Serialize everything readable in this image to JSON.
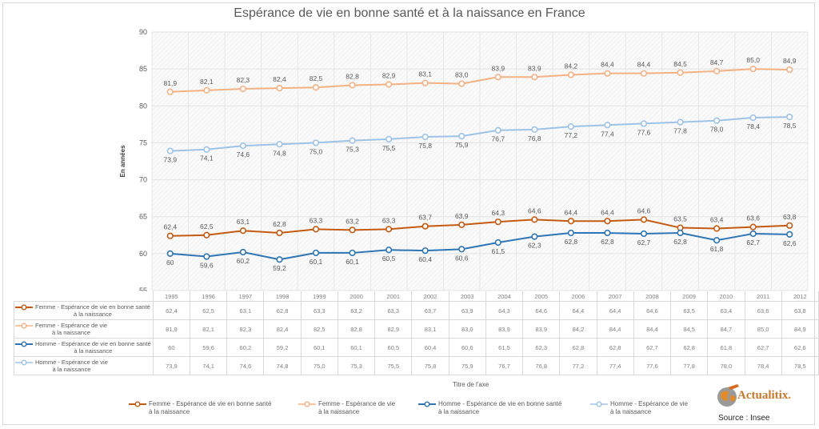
{
  "chart_data": {
    "type": "line",
    "title": "Espérance de vie en bonne santé et à la naissance en France",
    "xlabel": "Titre de l'axe",
    "ylabel": "En années",
    "ylim": [
      55,
      90
    ],
    "yticks": [
      "55",
      "60",
      "65",
      "70",
      "75",
      "80",
      "85",
      "90"
    ],
    "grid": true,
    "legend_position": "bottom",
    "categories": [
      "1995",
      "1996",
      "1997",
      "1998",
      "1999",
      "2000",
      "2001",
      "2002",
      "2003",
      "2004",
      "2005",
      "2006",
      "2007",
      "2008",
      "2009",
      "2010",
      "2011",
      "2012"
    ],
    "series": [
      {
        "name": "Femme - Espérance de vie en bonne santé à la naissance",
        "name_line1": "Femme - Espérance de vie en bonne santé",
        "name_line2": "à la naissance",
        "color": "#c55a11",
        "values": [
          62.4,
          62.5,
          63.1,
          62.8,
          63.3,
          63.2,
          63.3,
          63.7,
          63.9,
          64.3,
          64.6,
          64.4,
          64.4,
          64.6,
          63.5,
          63.4,
          63.6,
          63.8
        ],
        "labels": [
          "62,4",
          "62,5",
          "63,1",
          "62,8",
          "63,3",
          "63,2",
          "63,3",
          "63,7",
          "63,9",
          "64,3",
          "64,6",
          "64,4",
          "64,4",
          "64,6",
          "63,5",
          "63,4",
          "63,6",
          "63,8"
        ],
        "label_pos": "above"
      },
      {
        "name": "Femme - Espérance de vie à la naissance",
        "name_line1": "Femme - Espérance de vie",
        "name_line2": "à la naissance",
        "color": "#f4b183",
        "values": [
          81.9,
          82.1,
          82.3,
          82.4,
          82.5,
          82.8,
          82.9,
          83.1,
          83.0,
          83.9,
          83.9,
          84.2,
          84.4,
          84.4,
          84.5,
          84.7,
          85.0,
          84.9
        ],
        "labels": [
          "81,9",
          "82,1",
          "82,3",
          "82,4",
          "82,5",
          "82,8",
          "82,9",
          "83,1",
          "83,0",
          "83,9",
          "83,9",
          "84,2",
          "84,4",
          "84,4",
          "84,5",
          "84,7",
          "85,0",
          "84,9"
        ],
        "label_pos": "above"
      },
      {
        "name": "Homme - Espérance de vie en bonne santé à la naissance",
        "name_line1": "Homme - Espérance de vie en bonne santé",
        "name_line2": "à la naissance",
        "color": "#2e75b6",
        "values": [
          60,
          59.6,
          60.2,
          59.2,
          60.1,
          60.1,
          60.5,
          60.4,
          60.6,
          61.5,
          62.3,
          62.8,
          62.8,
          62.7,
          62.8,
          61.8,
          62.7,
          62.6
        ],
        "labels": [
          "60",
          "59,6",
          "60,2",
          "59,2",
          "60,1",
          "60,1",
          "60,5",
          "60,4",
          "60,6",
          "61,5",
          "62,3",
          "62,8",
          "62,8",
          "62,7",
          "62,8",
          "61,8",
          "62,7",
          "62,6"
        ],
        "label_pos": "below"
      },
      {
        "name": "Homme - Espérance de vie à la naissance",
        "name_line1": "Homme - Espérance de vie",
        "name_line2": "à la naissance",
        "color": "#9dc3e6",
        "values": [
          73.9,
          74.1,
          74.6,
          74.8,
          75.0,
          75.3,
          75.5,
          75.8,
          75.9,
          76.7,
          76.8,
          77.2,
          77.4,
          77.6,
          77.8,
          78.0,
          78.4,
          78.5
        ],
        "labels": [
          "73,9",
          "74,1",
          "74,6",
          "74,8",
          "75,0",
          "75,3",
          "75,5",
          "75,8",
          "75,9",
          "76,7",
          "76,8",
          "77,2",
          "77,4",
          "77,6",
          "77,8",
          "78,0",
          "78,4",
          "78,5"
        ],
        "label_pos": "below"
      }
    ]
  },
  "branding": {
    "logo_text": "Actualitix",
    "logo_dot": ".",
    "source": "Source : Insee"
  }
}
